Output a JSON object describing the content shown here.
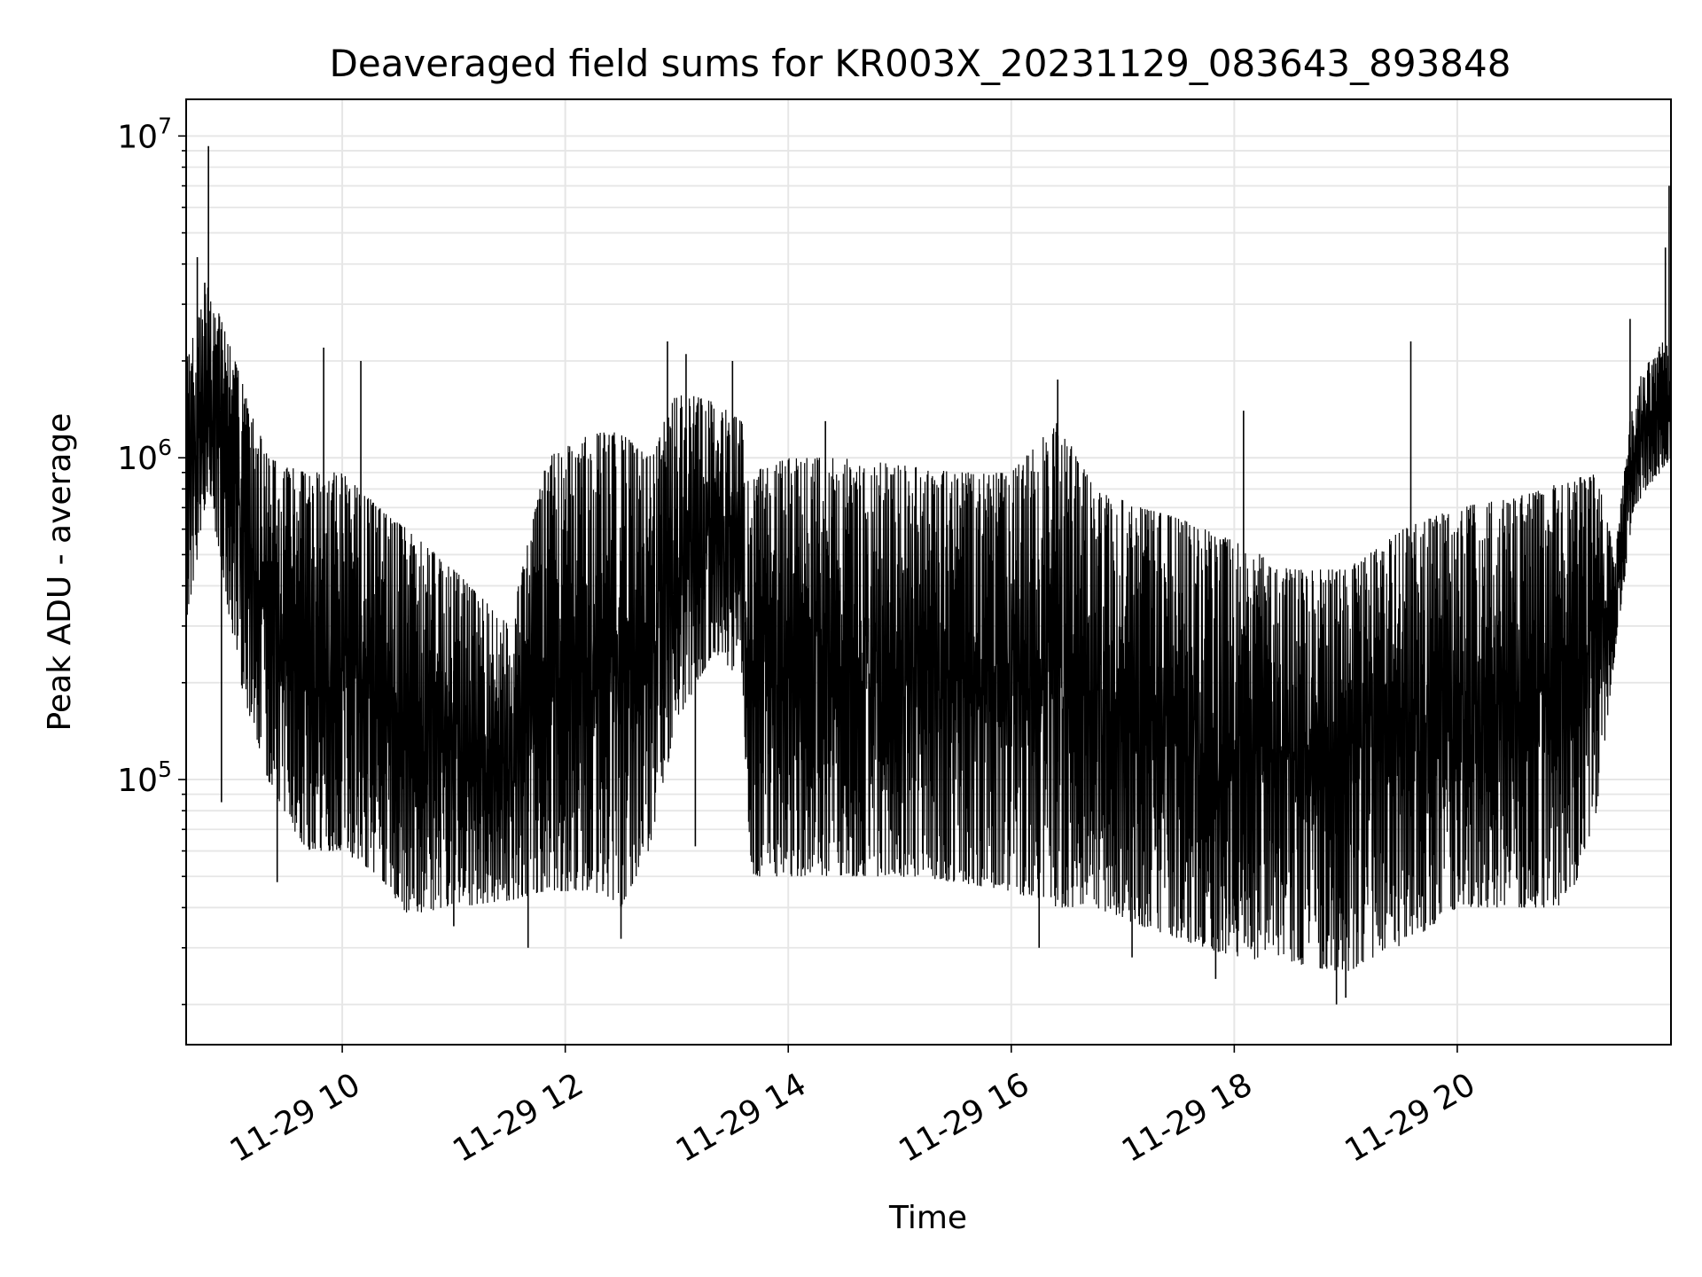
{
  "chart_data": {
    "type": "line",
    "title": "Deaveraged field sums for KR003X_20231129_083643_893848",
    "xlabel": "Time",
    "ylabel": "Peak ADU - average",
    "x_tick_labels": [
      "11-29 10",
      "11-29 12",
      "11-29 14",
      "11-29 16",
      "11-29 18",
      "11-29 20"
    ],
    "x_ticks": [
      "2023-11-29 10:00",
      "2023-11-29 12:00",
      "2023-11-29 14:00",
      "2023-11-29 16:00",
      "2023-11-29 18:00",
      "2023-11-29 20:00"
    ],
    "xlim": [
      "2023-11-29 08:36",
      "2023-11-29 21:55"
    ],
    "yscale": "log",
    "ylim": [
      15000,
      13000000
    ],
    "y_ticks": [
      {
        "value": 100000,
        "base": "10",
        "exp": "5"
      },
      {
        "value": 1000000,
        "base": "10",
        "exp": "6"
      },
      {
        "value": 10000000,
        "base": "10",
        "exp": "7"
      }
    ],
    "grid": true,
    "series_color": "#000000",
    "grid_color": "#e6e6e6",
    "envelope": [
      {
        "t": "2023-11-29 08:36",
        "low": 300000,
        "high": 2000000
      },
      {
        "t": "2023-11-29 08:48",
        "low": 800000,
        "high": 3500000
      },
      {
        "t": "2023-11-29 09:05",
        "low": 200000,
        "high": 1800000
      },
      {
        "t": "2023-11-29 09:20",
        "low": 100000,
        "high": 1000000
      },
      {
        "t": "2023-11-29 09:40",
        "low": 60000,
        "high": 900000
      },
      {
        "t": "2023-11-29 10:00",
        "low": 60000,
        "high": 900000
      },
      {
        "t": "2023-11-29 10:20",
        "low": 50000,
        "high": 700000
      },
      {
        "t": "2023-11-29 10:35",
        "low": 38000,
        "high": 600000
      },
      {
        "t": "2023-11-29 11:00",
        "low": 40000,
        "high": 450000
      },
      {
        "t": "2023-11-29 11:30",
        "low": 42000,
        "high": 300000
      },
      {
        "t": "2023-11-29 11:50",
        "low": 45000,
        "high": 1000000
      },
      {
        "t": "2023-11-29 12:15",
        "low": 45000,
        "high": 1200000
      },
      {
        "t": "2023-11-29 12:30",
        "low": 40000,
        "high": 1200000
      },
      {
        "t": "2023-11-29 12:45",
        "low": 60000,
        "high": 1000000
      },
      {
        "t": "2023-11-29 13:00",
        "low": 150000,
        "high": 1600000
      },
      {
        "t": "2023-11-29 13:20",
        "low": 250000,
        "high": 1500000
      },
      {
        "t": "2023-11-29 13:35",
        "low": 200000,
        "high": 1300000
      },
      {
        "t": "2023-11-29 13:40",
        "low": 50000,
        "high": 900000
      },
      {
        "t": "2023-11-29 14:00",
        "low": 50000,
        "high": 1000000
      },
      {
        "t": "2023-11-29 14:30",
        "low": 50000,
        "high": 1000000
      },
      {
        "t": "2023-11-29 15:00",
        "low": 50000,
        "high": 950000
      },
      {
        "t": "2023-11-29 15:30",
        "low": 48000,
        "high": 900000
      },
      {
        "t": "2023-11-29 16:00",
        "low": 45000,
        "high": 900000
      },
      {
        "t": "2023-11-29 16:25",
        "low": 40000,
        "high": 1300000
      },
      {
        "t": "2023-11-29 16:45",
        "low": 40000,
        "high": 800000
      },
      {
        "t": "2023-11-29 17:10",
        "low": 35000,
        "high": 700000
      },
      {
        "t": "2023-11-29 17:30",
        "low": 32000,
        "high": 650000
      },
      {
        "t": "2023-11-29 18:00",
        "low": 28000,
        "high": 550000
      },
      {
        "t": "2023-11-29 18:30",
        "low": 27000,
        "high": 450000
      },
      {
        "t": "2023-11-29 19:00",
        "low": 25000,
        "high": 450000
      },
      {
        "t": "2023-11-29 19:30",
        "low": 30000,
        "high": 600000
      },
      {
        "t": "2023-11-29 20:00",
        "low": 40000,
        "high": 700000
      },
      {
        "t": "2023-11-29 20:30",
        "low": 40000,
        "high": 750000
      },
      {
        "t": "2023-11-29 21:00",
        "low": 40000,
        "high": 850000
      },
      {
        "t": "2023-11-29 21:15",
        "low": 80000,
        "high": 900000
      },
      {
        "t": "2023-11-29 21:25",
        "low": 250000,
        "high": 500000
      },
      {
        "t": "2023-11-29 21:35",
        "low": 700000,
        "high": 1700000
      },
      {
        "t": "2023-11-29 21:55",
        "low": 1000000,
        "high": 2500000
      }
    ],
    "spikes": [
      {
        "t": "2023-11-29 08:48",
        "y": 9300000
      },
      {
        "t": "2023-11-29 08:42",
        "y": 4200000
      },
      {
        "t": "2023-11-29 08:46",
        "y": 3500000
      },
      {
        "t": "2023-11-29 08:55",
        "y": 85000
      },
      {
        "t": "2023-11-29 09:25",
        "y": 48000
      },
      {
        "t": "2023-11-29 09:50",
        "y": 2200000
      },
      {
        "t": "2023-11-29 10:10",
        "y": 2000000
      },
      {
        "t": "2023-11-29 11:00",
        "y": 35000
      },
      {
        "t": "2023-11-29 11:40",
        "y": 30000
      },
      {
        "t": "2023-11-29 12:30",
        "y": 32000
      },
      {
        "t": "2023-11-29 12:55",
        "y": 2300000
      },
      {
        "t": "2023-11-29 13:05",
        "y": 2100000
      },
      {
        "t": "2023-11-29 13:10",
        "y": 62000
      },
      {
        "t": "2023-11-29 13:30",
        "y": 2000000
      },
      {
        "t": "2023-11-29 14:20",
        "y": 1300000
      },
      {
        "t": "2023-11-29 16:25",
        "y": 1750000
      },
      {
        "t": "2023-11-29 16:15",
        "y": 30000
      },
      {
        "t": "2023-11-29 17:05",
        "y": 28000
      },
      {
        "t": "2023-11-29 18:05",
        "y": 1400000
      },
      {
        "t": "2023-11-29 17:50",
        "y": 24000
      },
      {
        "t": "2023-11-29 18:55",
        "y": 20000
      },
      {
        "t": "2023-11-29 19:00",
        "y": 21000
      },
      {
        "t": "2023-11-29 19:35",
        "y": 2300000
      },
      {
        "t": "2023-11-29 21:33",
        "y": 2700000
      },
      {
        "t": "2023-11-29 21:54",
        "y": 7000000
      },
      {
        "t": "2023-11-29 21:52",
        "y": 4500000
      }
    ]
  }
}
